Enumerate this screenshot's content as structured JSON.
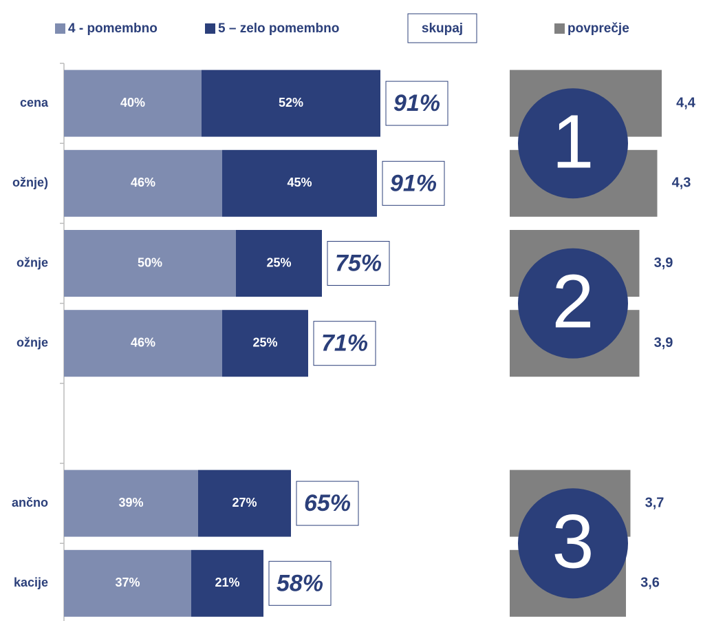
{
  "chart_data": {
    "type": "stacked-bar",
    "categories": [
      "cena",
      "ožnje)",
      "ožnje",
      "ožnje",
      null,
      "ančno",
      "kacije"
    ],
    "series": [
      {
        "name": "4 - pomembno",
        "color": "#7f8cb0",
        "values": [
          40,
          46,
          50,
          46,
          null,
          39,
          37
        ],
        "value_labels": [
          "40%",
          "46%",
          "50%",
          "46%",
          null,
          "39%",
          "37%"
        ]
      },
      {
        "name": "5 – zelo pomembno",
        "color": "#2b3f7a",
        "values": [
          52,
          45,
          25,
          25,
          null,
          27,
          21
        ],
        "value_labels": [
          "52%",
          "45%",
          "25%",
          "25%",
          null,
          "27%",
          "21%"
        ]
      }
    ],
    "totals": {
      "name": "skupaj",
      "values": [
        91,
        91,
        75,
        71,
        null,
        65,
        58
      ],
      "value_labels": [
        "91%",
        "91%",
        "75%",
        "71%",
        null,
        "65%",
        "58%"
      ]
    },
    "xlim": [
      0,
      100
    ],
    "averages": {
      "name": "povprečje",
      "color": "#808080",
      "values": [
        4.4,
        4.3,
        3.9,
        3.9,
        null,
        3.7,
        3.6
      ],
      "value_labels": [
        "4,4",
        "4,3",
        "3,9",
        "3,9",
        null,
        "3,7",
        "3,6"
      ],
      "xlim": [
        1,
        5
      ]
    },
    "groups": [
      {
        "label": "1",
        "rows": [
          0,
          1
        ]
      },
      {
        "label": "2",
        "rows": [
          2,
          3
        ]
      },
      {
        "label": "3",
        "rows": [
          5,
          6
        ]
      }
    ]
  }
}
